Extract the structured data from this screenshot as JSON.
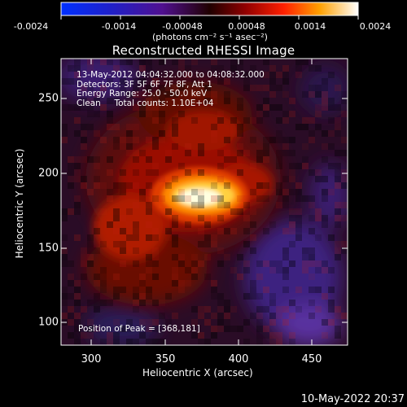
{
  "colorbar": {
    "tick_labels": [
      "-0.0024",
      "-0.0014",
      "-0.00048",
      "0.00048",
      "0.0014",
      "0.0024"
    ],
    "units": "(photons cm⁻² s⁻¹ asec⁻²)",
    "range": [
      -0.0024,
      0.0024
    ]
  },
  "image": {
    "title": "Reconstructed RHESSI Image",
    "annotation_lines": [
      "13-May-2012 04:04:32.000 to 04:08:32.000",
      "Detectors: 3F 5F 6F 7F 8F, Att 1",
      "Energy Range: 25.0 - 50.0 keV",
      "Clean     Total counts: 1.10E+04"
    ],
    "peak_label": "Position of Peak = [368,181]",
    "xlabel": "Heliocentric X (arcsec)",
    "ylabel": "Heliocentric Y (arcsec)",
    "xticks": [
      "300",
      "350",
      "400",
      "450"
    ],
    "yticks": [
      "250",
      "200",
      "150",
      "100"
    ],
    "timestamp": "10-May-2022 20:37"
  },
  "chart_data": {
    "type": "heatmap",
    "title": "Reconstructed RHESSI Image",
    "xlabel": "Heliocentric X (arcsec)",
    "ylabel": "Heliocentric Y (arcsec)",
    "xlim": [
      280,
      472
    ],
    "ylim": [
      82,
      274
    ],
    "xticks": [
      300,
      350,
      400,
      450
    ],
    "yticks": [
      100,
      150,
      200,
      250
    ],
    "peak": [
      368,
      181
    ],
    "colorbar_range": [
      -0.0024,
      0.0024
    ],
    "colorbar_ticks": [
      -0.0024,
      -0.0014,
      -0.00048,
      0.00048,
      0.0014,
      0.0024
    ]
  }
}
